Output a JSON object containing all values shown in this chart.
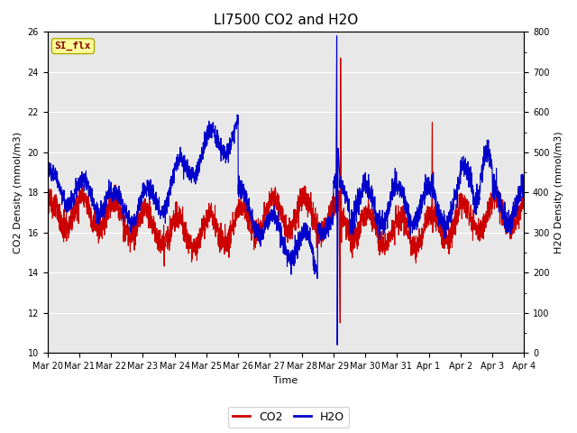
{
  "title": "LI7500 CO2 and H2O",
  "xlabel": "Time",
  "ylabel_left": "CO2 Density (mmol/m3)",
  "ylabel_right": "H2O Density (mmol/m3)",
  "ylim_left": [
    10,
    26
  ],
  "ylim_right": [
    0,
    800
  ],
  "yticks_left": [
    10,
    12,
    14,
    16,
    18,
    20,
    22,
    24,
    26
  ],
  "yticks_right": [
    0,
    100,
    200,
    300,
    400,
    500,
    600,
    700,
    800
  ],
  "x_tick_labels": [
    "Mar 20",
    "Mar 21",
    "Mar 22",
    "Mar 23",
    "Mar 24",
    "Mar 25",
    "Mar 26",
    "Mar 27",
    "Mar 28",
    "Mar 29",
    "Mar 30",
    "Mar 31",
    "Apr 1",
    "Apr 2",
    "Apr 3",
    "Apr 4"
  ],
  "legend_label": "SI_flx",
  "legend_bg": "#ffff99",
  "legend_border": "#aaaa00",
  "co2_color": "#cc0000",
  "h2o_color": "#0000cc",
  "plot_bg": "#e8e8e8",
  "fig_bg": "#ffffff",
  "title_fontsize": 11,
  "axis_fontsize": 8,
  "tick_fontsize": 7,
  "linewidth": 0.8
}
